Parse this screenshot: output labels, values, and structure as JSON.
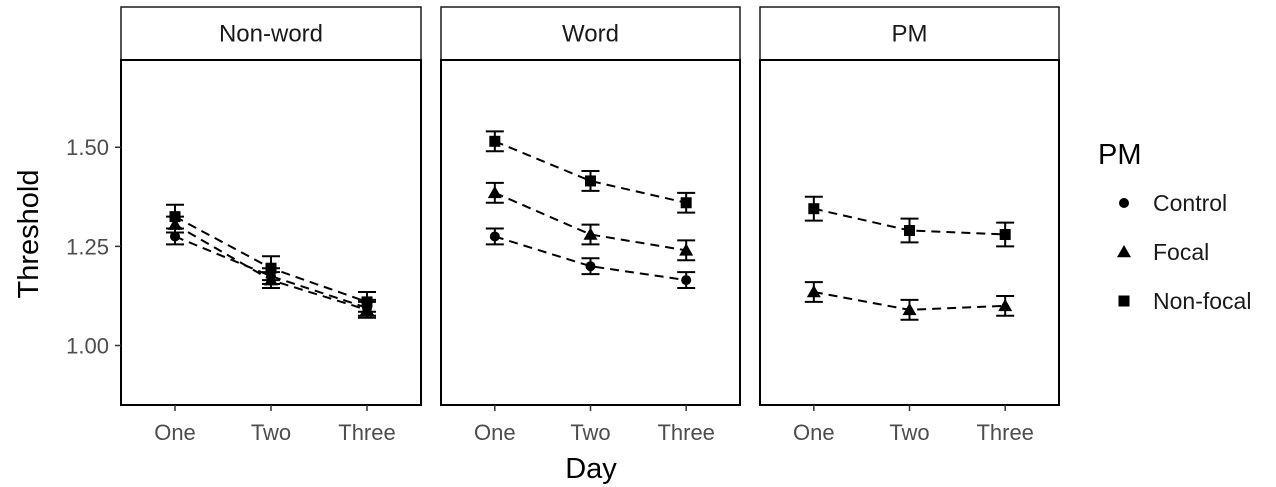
{
  "chart_data": {
    "type": "line",
    "xlabel": "Day",
    "ylabel": "Threshold",
    "categories": [
      "One",
      "Two",
      "Three"
    ],
    "ylim": [
      0.85,
      1.72
    ],
    "yticks": [
      1.0,
      1.25,
      1.5
    ],
    "ytick_labels": [
      "1.00",
      "1.25",
      "1.50"
    ],
    "grid": false,
    "line_style": "dashed",
    "error_bars": true,
    "legend": {
      "title": "PM",
      "placement": "right",
      "entries": [
        {
          "name": "Control",
          "shape": "circle"
        },
        {
          "name": "Focal",
          "shape": "triangle"
        },
        {
          "name": "Non-focal",
          "shape": "square"
        }
      ]
    },
    "panels": [
      {
        "title": "Non-word",
        "series": [
          {
            "name": "Control",
            "shape": "circle",
            "values": [
              1.275,
              1.175,
              1.095
            ],
            "lower": [
              1.255,
              1.155,
              1.075
            ],
            "upper": [
              1.295,
              1.195,
              1.115
            ]
          },
          {
            "name": "Focal",
            "shape": "triangle",
            "values": [
              1.305,
              1.165,
              1.09
            ],
            "lower": [
              1.285,
              1.145,
              1.07
            ],
            "upper": [
              1.325,
              1.185,
              1.11
            ]
          },
          {
            "name": "Non-focal",
            "shape": "square",
            "values": [
              1.325,
              1.195,
              1.11
            ],
            "lower": [
              1.295,
              1.165,
              1.085
            ],
            "upper": [
              1.355,
              1.225,
              1.135
            ]
          }
        ]
      },
      {
        "title": "Word",
        "series": [
          {
            "name": "Control",
            "shape": "circle",
            "values": [
              1.275,
              1.2,
              1.165
            ],
            "lower": [
              1.255,
              1.18,
              1.145
            ],
            "upper": [
              1.295,
              1.22,
              1.185
            ]
          },
          {
            "name": "Focal",
            "shape": "triangle",
            "values": [
              1.385,
              1.28,
              1.24
            ],
            "lower": [
              1.36,
              1.255,
              1.215
            ],
            "upper": [
              1.41,
              1.305,
              1.265
            ]
          },
          {
            "name": "Non-focal",
            "shape": "square",
            "values": [
              1.515,
              1.415,
              1.36
            ],
            "lower": [
              1.49,
              1.39,
              1.335
            ],
            "upper": [
              1.54,
              1.44,
              1.385
            ]
          }
        ]
      },
      {
        "title": "PM",
        "series": [
          {
            "name": "Focal",
            "shape": "triangle",
            "values": [
              1.135,
              1.09,
              1.1
            ],
            "lower": [
              1.11,
              1.065,
              1.075
            ],
            "upper": [
              1.16,
              1.115,
              1.125
            ]
          },
          {
            "name": "Non-focal",
            "shape": "square",
            "values": [
              1.345,
              1.29,
              1.28
            ],
            "lower": [
              1.315,
              1.26,
              1.25
            ],
            "upper": [
              1.375,
              1.32,
              1.31
            ]
          }
        ]
      }
    ]
  }
}
